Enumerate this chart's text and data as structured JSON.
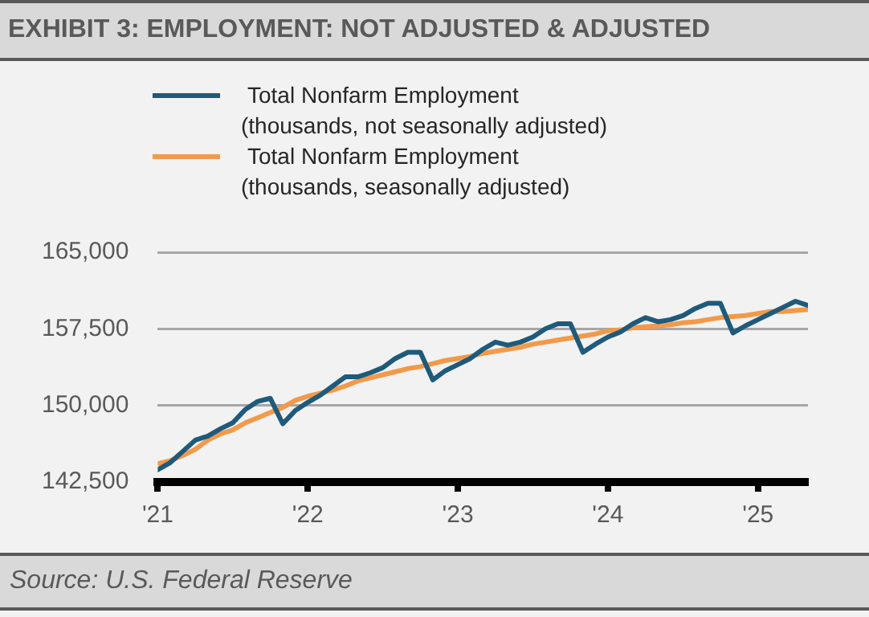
{
  "chart_data": {
    "type": "line",
    "title": "EXHIBIT 3: EMPLOYMENT: NOT ADJUSTED & ADJUSTED",
    "x": [
      "2021-03",
      "2021-04",
      "2021-05",
      "2021-06",
      "2021-07",
      "2021-08",
      "2021-09",
      "2021-10",
      "2021-11",
      "2021-12",
      "2022-01",
      "2022-02",
      "2022-03",
      "2022-04",
      "2022-05",
      "2022-06",
      "2022-07",
      "2022-08",
      "2022-09",
      "2022-10",
      "2022-11",
      "2022-12",
      "2023-01",
      "2023-02",
      "2023-03",
      "2023-04",
      "2023-05",
      "2023-06",
      "2023-07",
      "2023-08",
      "2023-09",
      "2023-10",
      "2023-11",
      "2023-12",
      "2024-01",
      "2024-02",
      "2024-03",
      "2024-04",
      "2024-05",
      "2024-06",
      "2024-07",
      "2024-08",
      "2024-09",
      "2024-10",
      "2024-11",
      "2024-12",
      "2025-01",
      "2025-02",
      "2025-03",
      "2025-04",
      "2025-05",
      "2025-06",
      "2025-07"
    ],
    "series": [
      {
        "name": "Total Nonfarm Employment (thousands, not seasonally adjusted)",
        "color": "#1f5a7a",
        "values": [
          143700,
          144400,
          145500,
          146600,
          147000,
          147700,
          148300,
          149600,
          150400,
          150700,
          148200,
          149500,
          150300,
          151000,
          151900,
          152800,
          152800,
          153200,
          153700,
          154600,
          155200,
          155200,
          152500,
          153400,
          154000,
          154600,
          155500,
          156200,
          155900,
          156200,
          156700,
          157500,
          158000,
          158000,
          155200,
          156000,
          156700,
          157200,
          158000,
          158600,
          158200,
          158400,
          158800,
          159500,
          160000,
          160000,
          157100,
          157800,
          158400,
          159000,
          159600,
          160200,
          159800
        ]
      },
      {
        "name": "Total Nonfarm Employment (thousands, seasonally adjusted)",
        "color": "#f29a4a",
        "values": [
          144300,
          144600,
          145100,
          145700,
          146600,
          147200,
          147600,
          148300,
          148800,
          149300,
          149800,
          150500,
          150900,
          151200,
          151500,
          151900,
          152400,
          152700,
          153000,
          153300,
          153600,
          153800,
          154100,
          154400,
          154600,
          154800,
          155100,
          155300,
          155500,
          155700,
          156000,
          156200,
          156400,
          156600,
          156800,
          157000,
          157300,
          157400,
          157600,
          157700,
          157800,
          157900,
          158100,
          158200,
          158400,
          158600,
          158700,
          158800,
          159000,
          159200,
          159200,
          159300,
          159400
        ]
      }
    ],
    "xlim": [
      "2021-03",
      "2025-07"
    ],
    "xticks": [
      {
        "value": "2021-03",
        "label": "'21"
      },
      {
        "value": "2022-03",
        "label": "'22"
      },
      {
        "value": "2023-03",
        "label": "'23"
      },
      {
        "value": "2024-03",
        "label": "'24"
      },
      {
        "value": "2025-03",
        "label": "'25"
      }
    ],
    "ylim": [
      142500,
      165000
    ],
    "yticks": [
      {
        "value": 142500,
        "label": "142,500"
      },
      {
        "value": 150000,
        "label": "150,000"
      },
      {
        "value": 157500,
        "label": "157,500"
      },
      {
        "value": 165000,
        "label": "165,000"
      }
    ],
    "grid": "y",
    "legend": "top",
    "marker": "none",
    "line_style": "solid",
    "annotations": [
      "Source: U.S. Federal Reserve"
    ]
  }
}
